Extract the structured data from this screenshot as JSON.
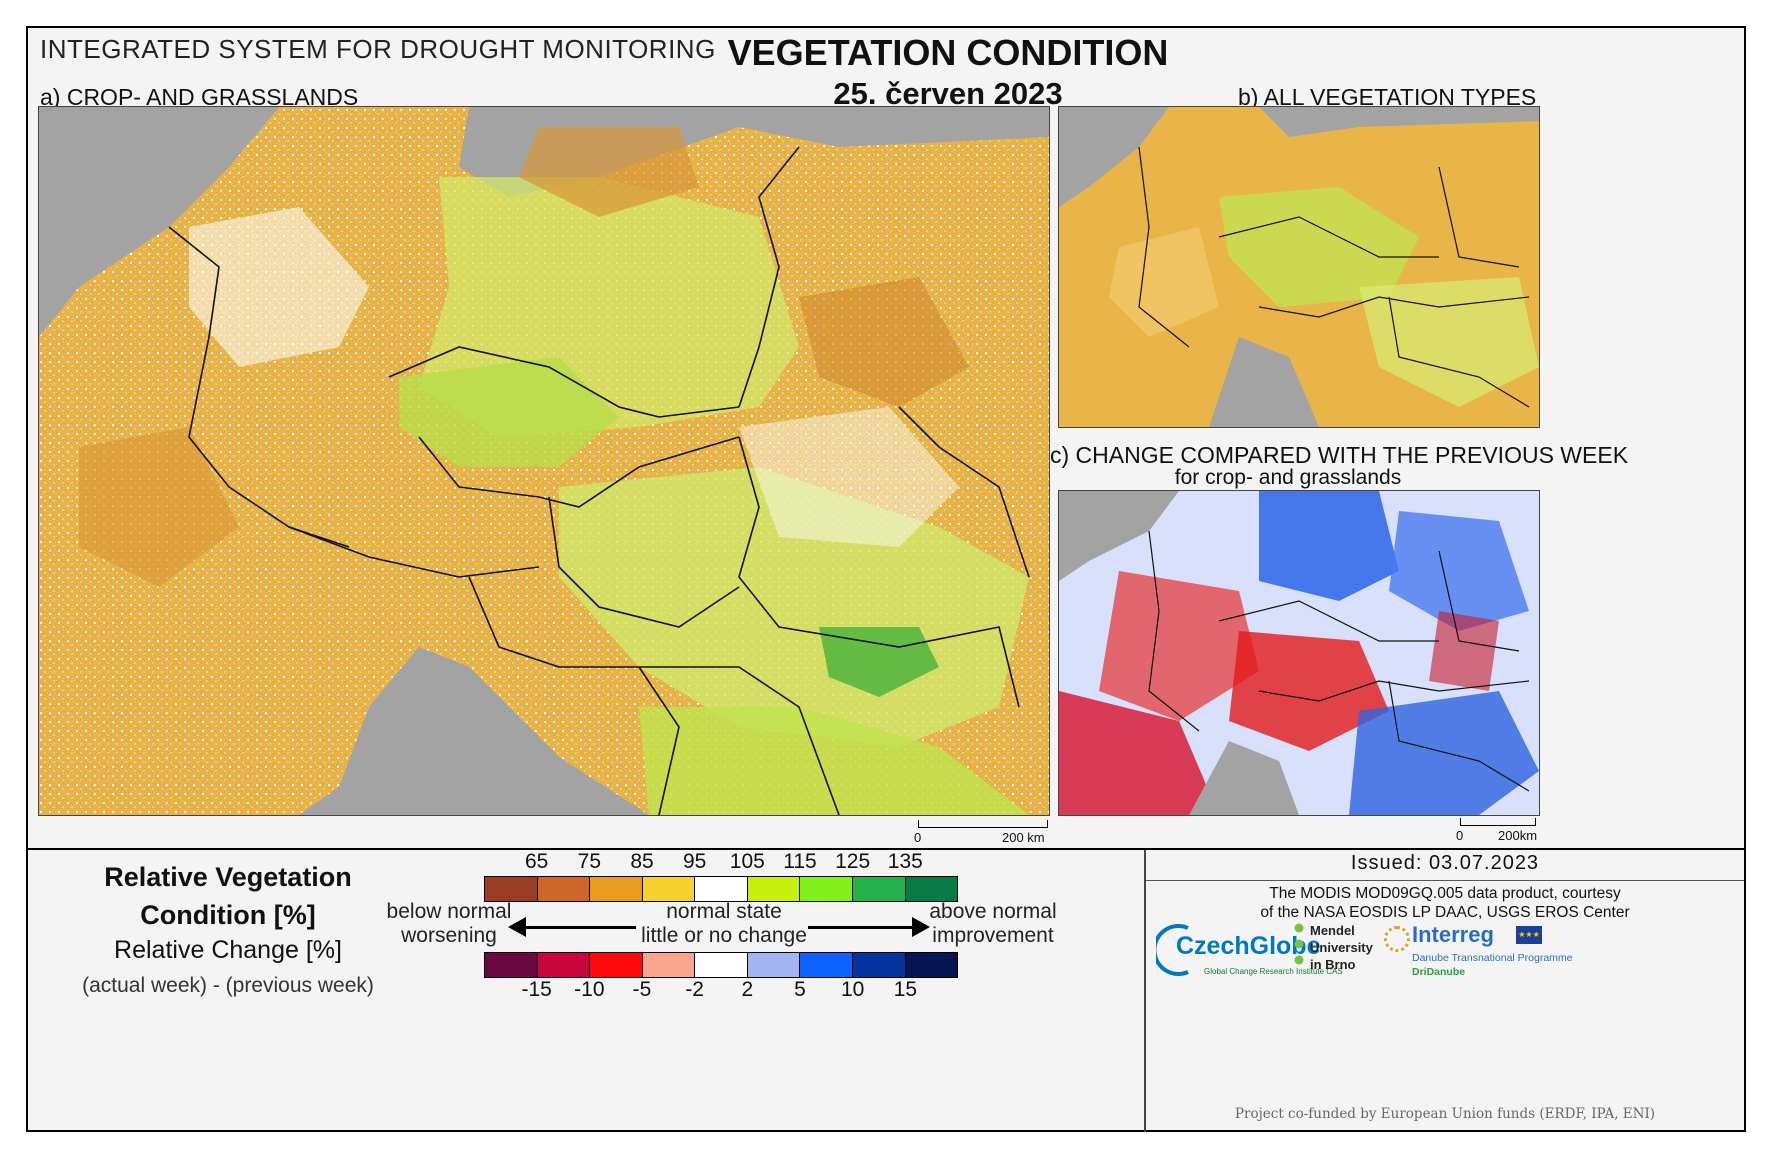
{
  "header": {
    "system_title": "INTEGRATED SYSTEM FOR DROUGHT MONITORING",
    "main_title": "VEGETATION CONDITION",
    "date": "25. červen 2023"
  },
  "panels": {
    "a_label": "a) CROP- AND GRASSLANDS",
    "b_label": "b) ALL VEGETATION TYPES",
    "c_label": "c) CHANGE COMPARED WITH THE PREVIOUS WEEK",
    "c_sublabel": "for crop- and grasslands",
    "scale_a_start": "0",
    "scale_a_end": "200 km",
    "scale_c_start": "0",
    "scale_c_end": "200km"
  },
  "legend": {
    "rvc_title": "Relative Vegetation Condition [%]",
    "rc_title": "Relative Change [%]",
    "rc_subtitle": "(actual week) - (previous week)",
    "rvc_ticks": [
      "65",
      "75",
      "85",
      "95",
      "105",
      "115",
      "125",
      "135"
    ],
    "rvc_colors": [
      "#9b3d22",
      "#cd6628",
      "#e79b1f",
      "#f7d12e",
      "#ffffff",
      "#c8f00d",
      "#84f01a",
      "#25b24d",
      "#0a7a45"
    ],
    "rc_ticks": [
      "-15",
      "-10",
      "-5",
      "-2",
      "2",
      "5",
      "10",
      "15"
    ],
    "rc_colors": [
      "#6b0843",
      "#c8063c",
      "#ff0a0a",
      "#fba58d",
      "#ffffff",
      "#a2b6f4",
      "#0c63ff",
      "#0733a0",
      "#061655"
    ],
    "left_text_1": "below normal",
    "left_text_2": "worsening",
    "center_text_1": "normal state",
    "center_text_2": "little or no change",
    "right_text_1": "above normal",
    "right_text_2": "improvement"
  },
  "credits": {
    "issued": "Issued: 03.07.2023",
    "line1": "The MODIS MOD09GQ.005 data product, courtesy",
    "line2": "of the NASA EOSDIS LP DAAC, USGS EROS Center",
    "czechglobe": "CzechGlobe",
    "czechglobe_sub": "Global Change Research Institute CAS",
    "mendel_1": "Mendel",
    "mendel_2": "University",
    "mendel_3": "in Brno",
    "interreg": "Interreg",
    "interreg_sub": "Danube Transnational Programme",
    "interreg_sub2": "DriDanube",
    "cofunded": "Project co-funded by European Union funds (ERDF, IPA, ENI)"
  }
}
